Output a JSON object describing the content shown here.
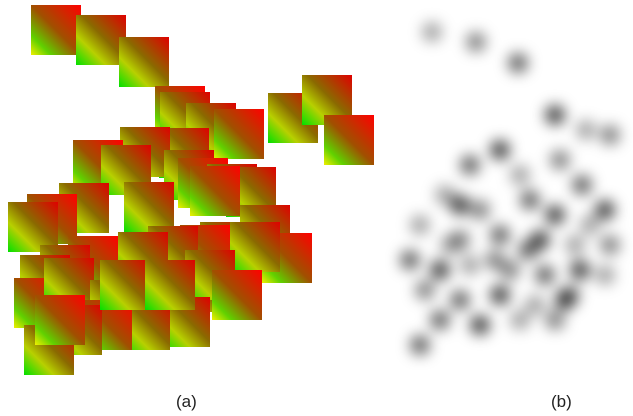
{
  "panels": [
    {
      "id": "a",
      "label": "(a)",
      "style": "colored-squares"
    },
    {
      "id": "b",
      "label": "(b)",
      "style": "blurred-blobs"
    }
  ],
  "colors": {
    "square_gradient": [
      "#ff0000",
      "#ffff00",
      "#00ff00"
    ],
    "blob": "#000000",
    "background": "#ffffff"
  }
}
